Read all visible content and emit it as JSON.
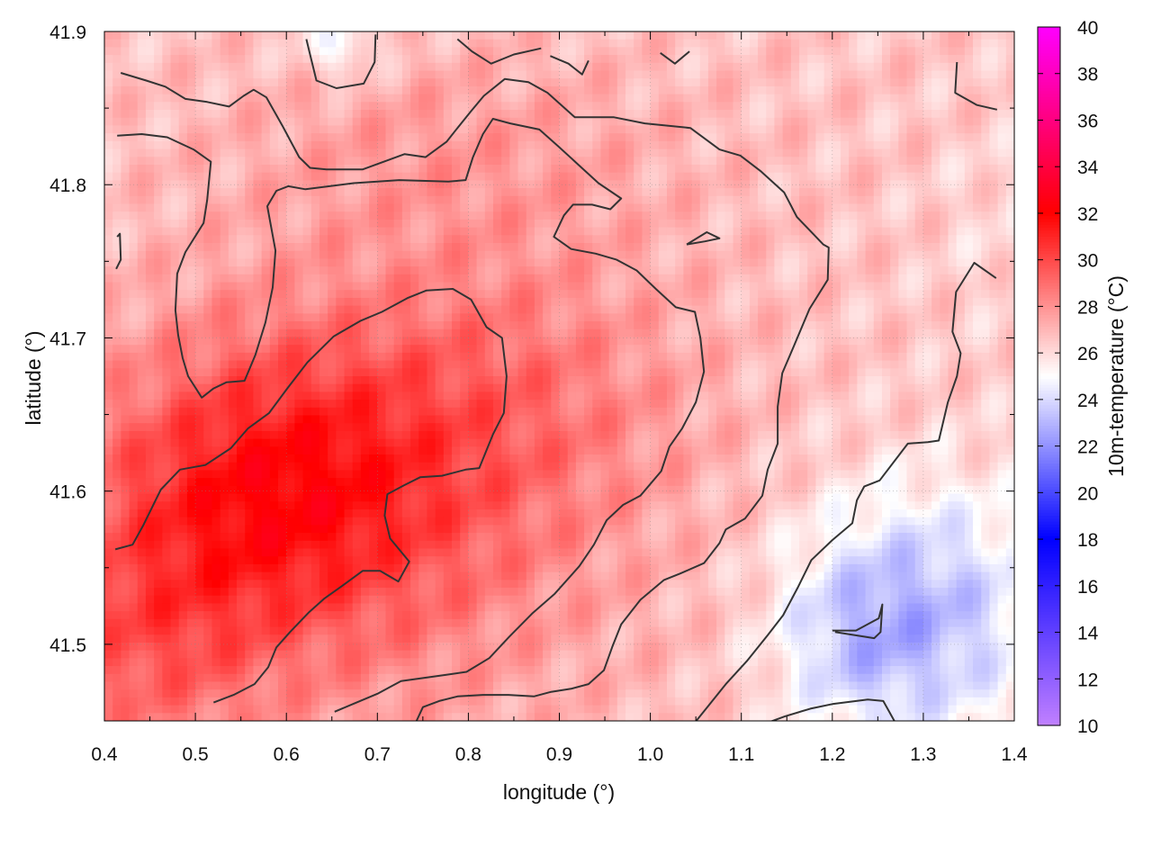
{
  "chart_data": {
    "type": "heatmap",
    "title": "",
    "xlabel": "longitude (°)",
    "ylabel": "latitude (°)",
    "colorbar_label": "10m-temperature (°C)",
    "xlim": [
      0.4,
      1.4
    ],
    "ylim": [
      41.45,
      41.9
    ],
    "x_ticks": [
      0.4,
      0.5,
      0.6,
      0.7,
      0.8,
      0.9,
      1.0,
      1.1,
      1.2,
      1.3,
      1.4
    ],
    "x_tick_labels": [
      "0.4",
      "0.5",
      "0.6",
      "0.7",
      "0.8",
      "0.9",
      "1.0",
      "1.1",
      "1.2",
      "1.3",
      "1.4"
    ],
    "y_ticks": [
      41.5,
      41.6,
      41.7,
      41.8,
      41.9
    ],
    "y_tick_labels": [
      "41.5",
      "41.6",
      "41.7",
      "41.8",
      "41.9"
    ],
    "colorbar_range": [
      10,
      40
    ],
    "colorbar_ticks": [
      10,
      12,
      14,
      16,
      18,
      20,
      22,
      24,
      26,
      28,
      30,
      32,
      34,
      36,
      38,
      40
    ],
    "colorbar_tick_labels": [
      "10",
      "12",
      "14",
      "16",
      "18",
      "20",
      "22",
      "24",
      "26",
      "28",
      "30",
      "32",
      "34",
      "36",
      "38",
      "40"
    ],
    "colorbar_stops": [
      {
        "value": 10,
        "color": "#c080ff"
      },
      {
        "value": 18,
        "color": "#0000ff"
      },
      {
        "value": 25,
        "color": "#ffffff"
      },
      {
        "value": 32,
        "color": "#ff0000"
      },
      {
        "value": 40,
        "color": "#ff00ff"
      }
    ],
    "grid": true,
    "grid_style": "dotted",
    "contour_color": "#333333",
    "field_grid": {
      "nx": 110,
      "ny": 88
    },
    "field_model": {
      "base": 26.6,
      "blobs": [
        {
          "lon": 0.58,
          "lat": 41.6,
          "slon": 0.14,
          "slat": 0.07,
          "amp": 4.2
        },
        {
          "lon": 0.47,
          "lat": 41.5,
          "slon": 0.08,
          "slat": 0.06,
          "amp": 1.6
        },
        {
          "lon": 0.85,
          "lat": 41.66,
          "slon": 0.14,
          "slat": 0.07,
          "amp": 1.5
        },
        {
          "lon": 0.72,
          "lat": 41.58,
          "slon": 0.2,
          "slat": 0.12,
          "amp": 1.4
        },
        {
          "lon": 0.78,
          "lat": 41.82,
          "slon": 0.18,
          "slat": 0.05,
          "amp": 1.0
        },
        {
          "lon": 1.3,
          "lat": 41.52,
          "slon": 0.1,
          "slat": 0.06,
          "amp": -3.4
        },
        {
          "lon": 1.22,
          "lat": 41.5,
          "slon": 0.06,
          "slat": 0.04,
          "amp": -1.3
        },
        {
          "lon": 0.38,
          "lat": 41.5,
          "slon": 0.06,
          "slat": 0.06,
          "amp": 1.0
        },
        {
          "lon": 0.66,
          "lat": 41.89,
          "slon": 0.03,
          "slat": 0.015,
          "amp": -2.0
        },
        {
          "lon": 1.38,
          "lat": 41.77,
          "slon": 0.05,
          "slat": 0.05,
          "amp": -0.5
        }
      ],
      "texture_amp": 0.45
    },
    "contours": [
      {
        "points": [
          [
            0.418,
            41.873
          ],
          [
            0.446,
            41.868
          ],
          [
            0.467,
            41.864
          ],
          [
            0.489,
            41.856
          ],
          [
            0.513,
            41.854
          ],
          [
            0.537,
            41.851
          ],
          [
            0.553,
            41.858
          ],
          [
            0.564,
            41.862
          ],
          [
            0.578,
            41.857
          ],
          [
            0.596,
            41.838
          ],
          [
            0.614,
            41.818
          ],
          [
            0.626,
            41.811
          ],
          [
            0.644,
            41.81
          ],
          [
            0.684,
            41.81
          ],
          [
            0.73,
            41.82
          ],
          [
            0.753,
            41.818
          ],
          [
            0.776,
            41.828
          ],
          [
            0.788,
            41.837
          ],
          [
            0.803,
            41.848
          ],
          [
            0.817,
            41.858
          ],
          [
            0.84,
            41.869
          ],
          [
            0.866,
            41.867
          ],
          [
            0.887,
            41.86
          ],
          [
            0.917,
            41.844
          ],
          [
            0.96,
            41.844
          ],
          [
            0.994,
            41.84
          ],
          [
            1.044,
            41.837
          ],
          [
            1.076,
            41.823
          ],
          [
            1.099,
            41.819
          ],
          [
            1.121,
            41.809
          ],
          [
            1.147,
            41.795
          ],
          [
            1.161,
            41.779
          ],
          [
            1.19,
            41.761
          ],
          [
            1.196,
            41.759
          ],
          [
            1.195,
            41.738
          ],
          [
            1.175,
            41.719
          ],
          [
            1.158,
            41.695
          ],
          [
            1.145,
            41.677
          ],
          [
            1.14,
            41.655
          ],
          [
            1.14,
            41.631
          ],
          [
            1.129,
            41.614
          ],
          [
            1.123,
            41.597
          ],
          [
            1.104,
            41.582
          ],
          [
            1.083,
            41.575
          ],
          [
            1.076,
            41.566
          ],
          [
            1.059,
            41.553
          ],
          [
            1.032,
            41.546
          ],
          [
            1.015,
            41.542
          ],
          [
            0.989,
            41.529
          ],
          [
            0.968,
            41.513
          ],
          [
            0.958,
            41.498
          ],
          [
            0.949,
            41.483
          ],
          [
            0.932,
            41.474
          ],
          [
            0.913,
            41.471
          ],
          [
            0.891,
            41.469
          ],
          [
            0.872,
            41.466
          ],
          [
            0.844,
            41.467
          ],
          [
            0.816,
            41.467
          ],
          [
            0.788,
            41.466
          ],
          [
            0.768,
            41.463
          ],
          [
            0.75,
            41.459
          ],
          [
            0.743,
            41.45
          ]
        ]
      },
      {
        "points": [
          [
            0.414,
            41.832
          ],
          [
            0.441,
            41.833
          ],
          [
            0.469,
            41.831
          ],
          [
            0.498,
            41.823
          ],
          [
            0.517,
            41.815
          ],
          [
            0.513,
            41.79
          ],
          [
            0.509,
            41.775
          ],
          [
            0.489,
            41.756
          ],
          [
            0.48,
            41.742
          ],
          [
            0.478,
            41.718
          ],
          [
            0.481,
            41.702
          ],
          [
            0.486,
            41.687
          ],
          [
            0.492,
            41.675
          ],
          [
            0.507,
            41.661
          ],
          [
            0.52,
            41.667
          ],
          [
            0.534,
            41.671
          ],
          [
            0.554,
            41.672
          ],
          [
            0.566,
            41.689
          ],
          [
            0.577,
            41.71
          ],
          [
            0.585,
            41.733
          ],
          [
            0.588,
            41.757
          ],
          [
            0.579,
            41.786
          ],
          [
            0.589,
            41.796
          ],
          [
            0.602,
            41.799
          ],
          [
            0.621,
            41.797
          ],
          [
            0.674,
            41.801
          ],
          [
            0.724,
            41.803
          ],
          [
            0.778,
            41.802
          ],
          [
            0.797,
            41.803
          ],
          [
            0.805,
            41.818
          ],
          [
            0.816,
            41.833
          ],
          [
            0.827,
            41.843
          ],
          [
            0.846,
            41.84
          ],
          [
            0.878,
            41.836
          ],
          [
            0.899,
            41.825
          ],
          [
            0.921,
            41.813
          ],
          [
            0.943,
            41.801
          ],
          [
            0.968,
            41.791
          ],
          [
            0.956,
            41.784
          ],
          [
            0.936,
            41.787
          ],
          [
            0.915,
            41.787
          ],
          [
            0.905,
            41.78
          ],
          [
            0.894,
            41.766
          ],
          [
            0.913,
            41.758
          ],
          [
            0.94,
            41.755
          ],
          [
            0.963,
            41.751
          ],
          [
            0.985,
            41.744
          ],
          [
            1.006,
            41.732
          ],
          [
            1.028,
            41.72
          ],
          [
            1.049,
            41.717
          ],
          [
            1.055,
            41.7
          ],
          [
            1.059,
            41.678
          ],
          [
            1.05,
            41.658
          ],
          [
            1.035,
            41.641
          ],
          [
            1.021,
            41.629
          ],
          [
            1.012,
            41.613
          ],
          [
            0.989,
            41.597
          ],
          [
            0.97,
            41.591
          ],
          [
            0.952,
            41.581
          ],
          [
            0.938,
            41.565
          ],
          [
            0.922,
            41.551
          ],
          [
            0.895,
            41.533
          ],
          [
            0.87,
            41.52
          ],
          [
            0.845,
            41.505
          ],
          [
            0.823,
            41.491
          ],
          [
            0.798,
            41.482
          ],
          [
            0.775,
            41.48
          ],
          [
            0.751,
            41.478
          ],
          [
            0.726,
            41.476
          ],
          [
            0.701,
            41.468
          ],
          [
            0.673,
            41.461
          ],
          [
            0.653,
            41.456
          ]
        ]
      },
      {
        "points": [
          [
            0.412,
            41.562
          ],
          [
            0.431,
            41.565
          ],
          [
            0.443,
            41.578
          ],
          [
            0.462,
            41.601
          ],
          [
            0.483,
            41.614
          ],
          [
            0.511,
            41.617
          ],
          [
            0.539,
            41.628
          ],
          [
            0.558,
            41.641
          ],
          [
            0.581,
            41.651
          ],
          [
            0.601,
            41.667
          ],
          [
            0.623,
            41.684
          ],
          [
            0.652,
            41.701
          ],
          [
            0.681,
            41.711
          ],
          [
            0.705,
            41.717
          ],
          [
            0.733,
            41.726
          ],
          [
            0.754,
            41.731
          ],
          [
            0.783,
            41.732
          ],
          [
            0.803,
            41.725
          ],
          [
            0.82,
            41.707
          ],
          [
            0.837,
            41.7
          ],
          [
            0.842,
            41.675
          ],
          [
            0.839,
            41.651
          ],
          [
            0.827,
            41.637
          ],
          [
            0.812,
            41.615
          ],
          [
            0.797,
            41.614
          ],
          [
            0.771,
            41.61
          ],
          [
            0.747,
            41.609
          ],
          [
            0.73,
            41.604
          ],
          [
            0.711,
            41.598
          ],
          [
            0.708,
            41.584
          ],
          [
            0.714,
            41.569
          ],
          [
            0.735,
            41.554
          ],
          [
            0.723,
            41.541
          ],
          [
            0.703,
            41.548
          ],
          [
            0.684,
            41.548
          ],
          [
            0.661,
            41.538
          ],
          [
            0.642,
            41.53
          ],
          [
            0.625,
            41.521
          ],
          [
            0.604,
            41.508
          ],
          [
            0.589,
            41.498
          ],
          [
            0.58,
            41.485
          ],
          [
            0.565,
            41.474
          ],
          [
            0.542,
            41.467
          ],
          [
            0.52,
            41.462
          ]
        ]
      },
      {
        "points": [
          [
            0.414,
            41.766
          ],
          [
            0.417,
            41.768
          ],
          [
            0.418,
            41.751
          ],
          [
            0.413,
            41.745
          ]
        ]
      },
      {
        "points": [
          [
            1.04,
            41.761
          ],
          [
            1.062,
            41.769
          ],
          [
            1.076,
            41.765
          ],
          [
            1.06,
            41.763
          ],
          [
            1.04,
            41.761
          ]
        ]
      },
      {
        "points": [
          [
            1.2,
            41.509
          ],
          [
            1.226,
            41.509
          ],
          [
            1.251,
            41.517
          ],
          [
            1.255,
            41.526
          ],
          [
            1.253,
            41.508
          ],
          [
            1.246,
            41.504
          ],
          [
            1.203,
            41.508
          ]
        ]
      },
      {
        "points": [
          [
            1.27,
            41.448
          ],
          [
            1.256,
            41.463
          ],
          [
            1.239,
            41.464
          ],
          [
            1.2,
            41.461
          ],
          [
            1.176,
            41.458
          ],
          [
            1.148,
            41.453
          ],
          [
            1.116,
            41.446
          ]
        ]
      },
      {
        "points": [
          [
            1.011,
            41.886
          ],
          [
            1.027,
            41.879
          ],
          [
            1.043,
            41.887
          ]
        ]
      },
      {
        "points": [
          [
            0.89,
            41.884
          ],
          [
            0.91,
            41.879
          ],
          [
            0.925,
            41.872
          ],
          [
            0.932,
            41.881
          ]
        ]
      },
      {
        "points": [
          [
            0.788,
            41.895
          ],
          [
            0.804,
            41.887
          ],
          [
            0.825,
            41.879
          ],
          [
            0.85,
            41.885
          ],
          [
            0.88,
            41.889
          ]
        ]
      },
      {
        "points": [
          [
            0.622,
            41.895
          ],
          [
            0.626,
            41.885
          ],
          [
            0.633,
            41.868
          ],
          [
            0.655,
            41.863
          ],
          [
            0.685,
            41.866
          ],
          [
            0.697,
            41.88
          ],
          [
            0.698,
            41.898
          ]
        ]
      },
      {
        "points": [
          [
            1.337,
            41.88
          ],
          [
            1.335,
            41.86
          ],
          [
            1.359,
            41.852
          ],
          [
            1.381,
            41.849
          ]
        ]
      },
      {
        "points": [
          [
            1.38,
            41.739
          ],
          [
            1.356,
            41.749
          ],
          [
            1.336,
            41.73
          ],
          [
            1.332,
            41.704
          ],
          [
            1.341,
            41.69
          ],
          [
            1.337,
            41.675
          ],
          [
            1.327,
            41.658
          ],
          [
            1.317,
            41.633
          ],
          [
            1.305,
            41.632
          ],
          [
            1.283,
            41.631
          ],
          [
            1.252,
            41.607
          ],
          [
            1.235,
            41.603
          ],
          [
            1.227,
            41.594
          ],
          [
            1.222,
            41.579
          ],
          [
            1.2,
            41.568
          ],
          [
            1.177,
            41.555
          ],
          [
            1.162,
            41.537
          ],
          [
            1.146,
            41.519
          ],
          [
            1.129,
            41.506
          ],
          [
            1.106,
            41.489
          ],
          [
            1.083,
            41.474
          ],
          [
            1.064,
            41.46
          ],
          [
            1.045,
            41.446
          ]
        ]
      },
      {
        "points": [
          [
            1.318,
            41.441
          ],
          [
            1.322,
            41.446
          ],
          [
            1.325,
            41.441
          ]
        ]
      }
    ]
  }
}
